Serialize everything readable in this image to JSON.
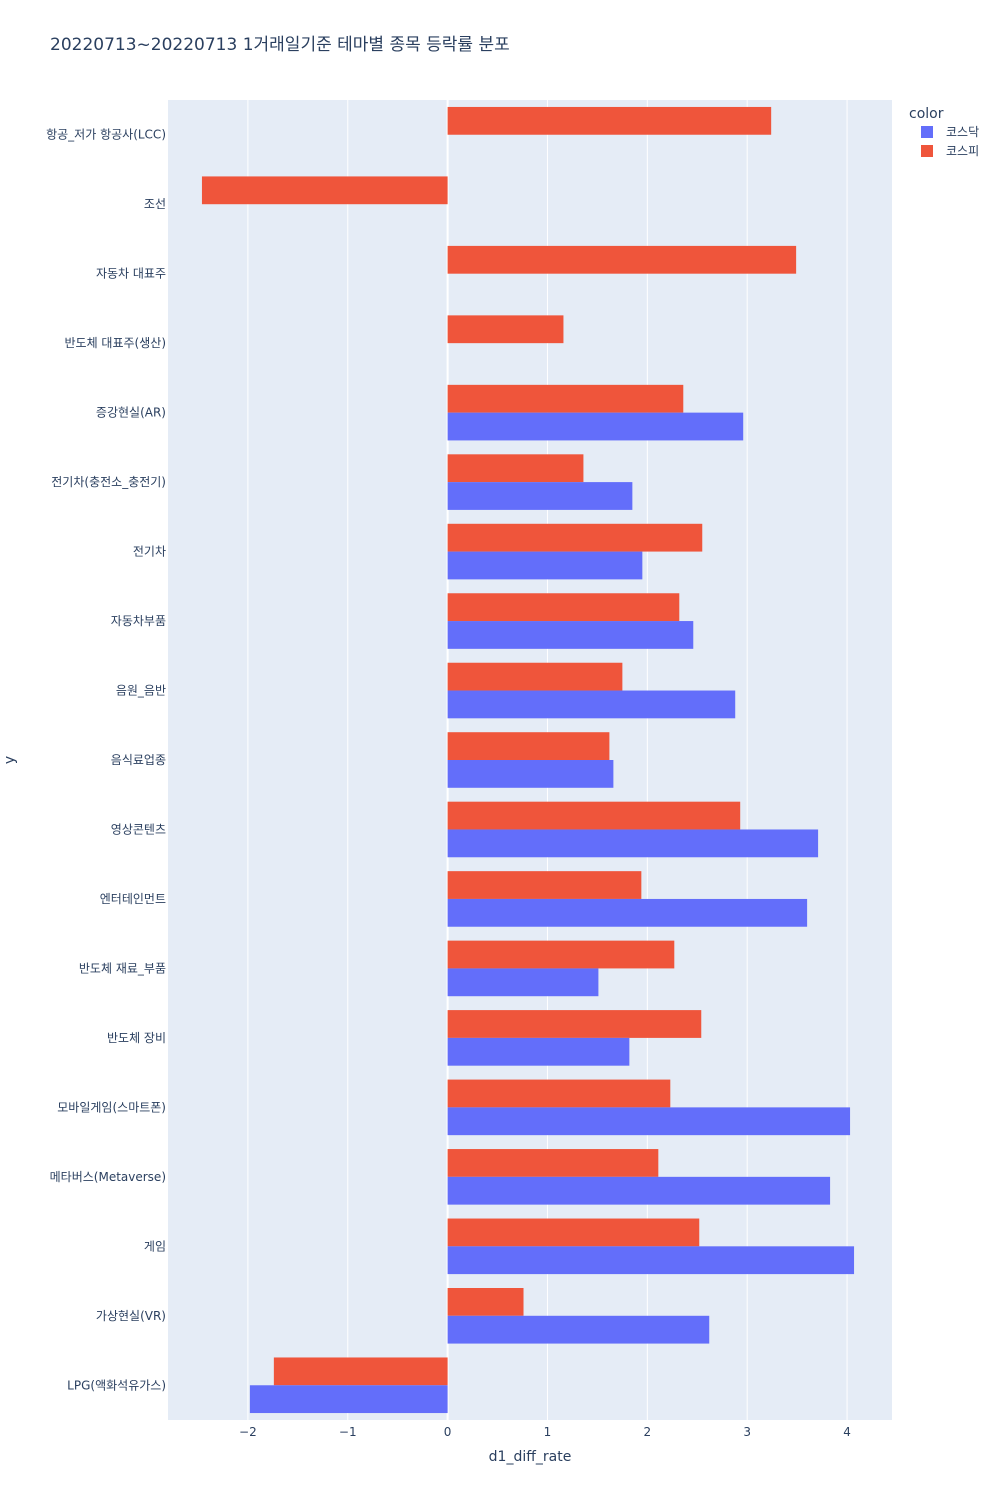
{
  "chart_data": {
    "type": "bar",
    "orientation": "horizontal",
    "title": "20220713~20220713 1거래일기준 테마별 종목 등락률 분포",
    "xlabel": "d1_diff_rate",
    "ylabel": "y",
    "xlim": [
      -2.8,
      4.45
    ],
    "xticks": [
      -2,
      -1,
      0,
      1,
      2,
      3,
      4
    ],
    "xtick_labels": [
      "−2",
      "−1",
      "0",
      "1",
      "2",
      "3",
      "4"
    ],
    "legend_title": "color",
    "legend_position": "top-right",
    "categories": [
      "항공_저가 항공사(LCC)",
      "조선",
      "자동차 대표주",
      "반도체 대표주(생산)",
      "증강현실(AR)",
      "전기차(충전소_충전기)",
      "전기차",
      "자동차부품",
      "음원_음반",
      "음식료업종",
      "영상콘텐츠",
      "엔터테인먼트",
      "반도체 재료_부품",
      "반도체 장비",
      "모바일게임(스마트폰)",
      "메타버스(Metaverse)",
      "게임",
      "가상현실(VR)",
      "LPG(액화석유가스)"
    ],
    "series": [
      {
        "name": "코스닥",
        "color": "#636efa",
        "values": [
          null,
          null,
          null,
          null,
          2.96,
          1.85,
          1.95,
          2.46,
          2.88,
          1.66,
          3.71,
          3.6,
          1.51,
          1.82,
          4.03,
          3.83,
          4.07,
          2.62,
          -1.98
        ]
      },
      {
        "name": "코스피",
        "color": "#ef553b",
        "values": [
          3.24,
          -2.46,
          3.49,
          1.16,
          2.36,
          1.36,
          2.55,
          2.32,
          1.75,
          1.62,
          2.93,
          1.94,
          2.27,
          2.54,
          2.23,
          2.11,
          2.52,
          0.76,
          -1.74
        ]
      }
    ]
  }
}
